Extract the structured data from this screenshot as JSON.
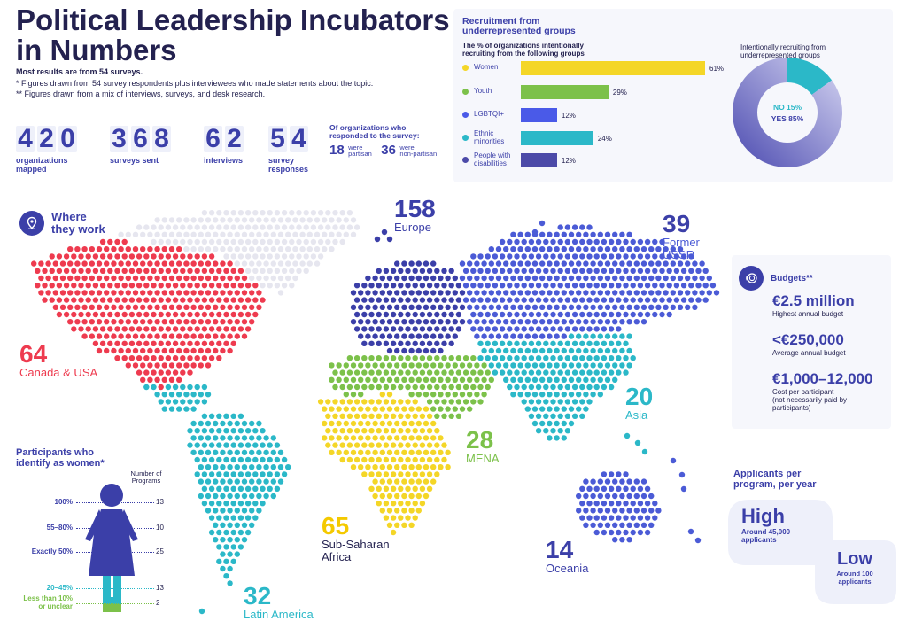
{
  "header": {
    "title_line1": "Political Leadership Incubators",
    "title_line2": "in Numbers",
    "note1": "Most results are from 54 surveys.",
    "note2": "* Figures drawn from 54 survey respondents plus interviewees who made statements about the topic.",
    "note3": "** Figures drawn from a mix of interviews, surveys, and desk research."
  },
  "stats": [
    {
      "digits": [
        "4",
        "2",
        "0"
      ],
      "label_line1": "organizations",
      "label_line2": "mapped"
    },
    {
      "digits": [
        "3",
        "6",
        "8"
      ],
      "label_line1": "surveys sent",
      "label_line2": ""
    },
    {
      "digits": [
        "6",
        "2"
      ],
      "label_line1": "interviews",
      "label_line2": ""
    },
    {
      "digits": [
        "5",
        "4"
      ],
      "label_line1": "survey",
      "label_line2": "responses"
    }
  ],
  "partisan": {
    "heading_line1": "Of organizations who",
    "heading_line2": "responded to the survey:",
    "partisan_value": "18",
    "partisan_label_line1": "were",
    "partisan_label_line2": "partisan",
    "nonpartisan_value": "36",
    "nonpartisan_label_line1": "were",
    "nonpartisan_label_line2": "non-partisan"
  },
  "recruitment": {
    "title_line1": "Recruitment from",
    "title_line2": "underrepresented groups",
    "subtitle_line1": "The % of organizations intentionally",
    "subtitle_line2": "recruiting from the following groups",
    "pie_title_line1": "Intentionally recruiting from",
    "pie_title_line2": "underrepresented groups"
  },
  "where": {
    "title_line1": "Where",
    "title_line2": "they work"
  },
  "budgets": {
    "title": "Budgets**",
    "items": [
      {
        "value": "€2.5 million",
        "label_lines": [
          "Highest annual budget"
        ]
      },
      {
        "value": "<€250,000",
        "label_lines": [
          "Average annual budget"
        ]
      },
      {
        "value": "€1,000–12,000",
        "label_lines": [
          "Cost per participant",
          "(not necessarily paid by",
          "participants)"
        ]
      }
    ]
  },
  "participants_women": {
    "title_line1": "Participants who",
    "title_line2": "identify as women*",
    "column_header_line1": "Number of",
    "column_header_line2": "Programs"
  },
  "applicants": {
    "title_line1": "Applicants per",
    "title_line2": "program, per year",
    "high_label": "High",
    "high_detail_line1": "Around 45,000",
    "high_detail_line2": "applicants",
    "low_label": "Low",
    "low_detail_line1": "Around 100",
    "low_detail_line2": "applicants"
  },
  "colors": {
    "navy": "#23214f",
    "blue": "#3b3fa8",
    "red": "#ee3b4f",
    "teal": "#2bb8c8",
    "green": "#7cc14a",
    "yellow": "#f4d627",
    "lightgrey": "#e6e6ef"
  },
  "chart_data": [
    {
      "type": "bar",
      "categories": [
        "Women",
        "Youth",
        "LGBTQI+",
        "Ethnic minorities",
        "People with disabilities"
      ],
      "values": [
        61,
        29,
        12,
        24,
        12
      ],
      "value_labels": [
        "61%",
        "29%",
        "12%",
        "24%",
        "12%"
      ],
      "colors": [
        "#f4d627",
        "#7cc14a",
        "#4a5ae8",
        "#2bb8c8",
        "#4c4aa8"
      ],
      "title": "Recruitment from underrepresented groups",
      "xlim": [
        0,
        61
      ]
    },
    {
      "type": "pie",
      "categories": [
        "NO",
        "YES"
      ],
      "values": [
        15,
        85
      ],
      "value_labels": [
        "NO 15%",
        "YES 85%"
      ],
      "colors": [
        "#2bb8c8",
        "#8f8fd6"
      ],
      "title": "Intentionally recruiting from underrepresented groups"
    },
    {
      "type": "map",
      "title": "Where they work",
      "regions": [
        {
          "name": "Canada & USA",
          "value": 64,
          "color": "#ee3b4f"
        },
        {
          "name": "Europe",
          "value": 158,
          "color": "#3b3fa8"
        },
        {
          "name": "Former USSR",
          "value": 39,
          "color": "#4b5bd6"
        },
        {
          "name": "Asia",
          "value": 20,
          "color": "#2bb8c8"
        },
        {
          "name": "MENA",
          "value": 28,
          "color": "#7cc14a"
        },
        {
          "name": "Sub-Saharan Africa",
          "value": 65,
          "color": "#f4d627"
        },
        {
          "name": "Latin America",
          "value": 32,
          "color": "#2bb8c8"
        },
        {
          "name": "Oceania",
          "value": 14,
          "color": "#4b5bd6"
        }
      ]
    },
    {
      "type": "table",
      "title": "Participants who identify as women*",
      "rows": [
        {
          "label": "100%",
          "programs": 13,
          "color": "#3b3fa8"
        },
        {
          "label": "55–80%",
          "programs": 10,
          "color": "#3b3fa8"
        },
        {
          "label": "Exactly 50%",
          "programs": 25,
          "color": "#3b3fa8"
        },
        {
          "label": "20–45%",
          "programs": 13,
          "color": "#2bb8c8"
        },
        {
          "label": "Less than 10% or unclear",
          "programs": 2,
          "color": "#7cc14a"
        }
      ]
    }
  ]
}
